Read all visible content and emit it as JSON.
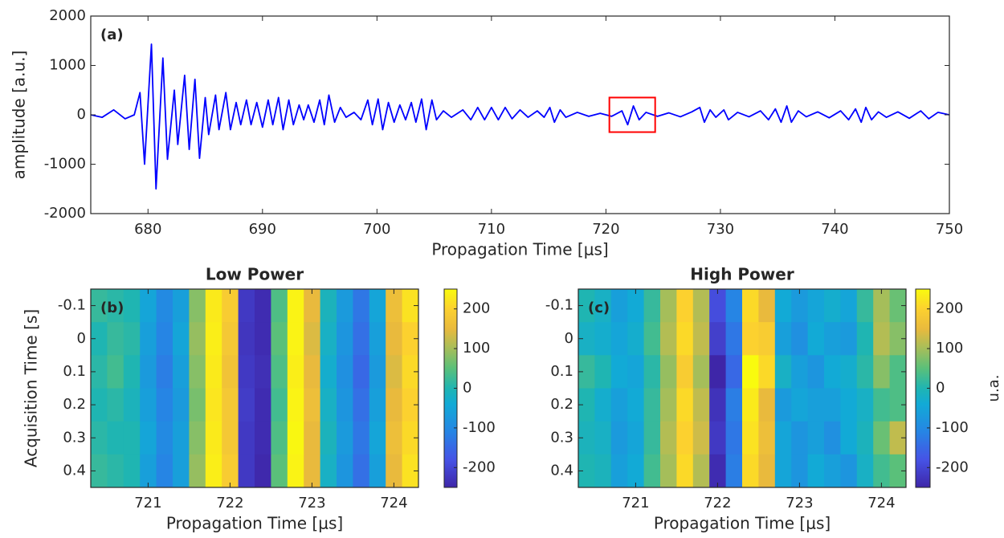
{
  "chart_data": [
    {
      "type": "line",
      "label": "(a)",
      "xlabel": "Propagation Time [μs]",
      "ylabel": "amplitude [a.u.]",
      "xlim": [
        675,
        750
      ],
      "ylim": [
        -2000,
        2000
      ],
      "xticks": [
        680,
        690,
        700,
        710,
        720,
        730,
        740,
        750
      ],
      "yticks": [
        -2000,
        -1000,
        0,
        1000,
        2000
      ],
      "series": [
        {
          "color": "#0000ff",
          "x": [
            675,
            676,
            677,
            678,
            678.8,
            679.3,
            679.7,
            680.3,
            680.7,
            681.3,
            681.7,
            682.3,
            682.6,
            683.2,
            683.6,
            684.1,
            684.5,
            685.0,
            685.3,
            685.9,
            686.2,
            686.8,
            687.2,
            687.7,
            688.1,
            688.6,
            689.0,
            689.5,
            690.0,
            690.5,
            690.9,
            691.4,
            691.8,
            692.3,
            692.7,
            693.2,
            693.6,
            694.0,
            694.5,
            695.0,
            695.4,
            695.8,
            696.3,
            696.8,
            697.3,
            698,
            698.6,
            699.2,
            699.6,
            700.1,
            700.5,
            701.0,
            701.5,
            702,
            702.5,
            703,
            703.4,
            703.9,
            704.3,
            704.8,
            705.2,
            705.8,
            706.5,
            707.5,
            708.2,
            708.8,
            709.4,
            710,
            710.6,
            711.2,
            711.8,
            712.5,
            713.2,
            714,
            714.6,
            715.1,
            715.5,
            716,
            716.5,
            717.5,
            718.5,
            719.5,
            720.5,
            721.4,
            721.9,
            722.4,
            722.9,
            723.5,
            724.5,
            725.5,
            726.5,
            727.5,
            728.2,
            728.6,
            729.1,
            729.6,
            730.3,
            730.7,
            731.5,
            732.5,
            733.5,
            734.2,
            734.8,
            735.3,
            735.8,
            736.2,
            736.8,
            737.5,
            738.5,
            739.5,
            740.5,
            741.2,
            741.8,
            742.3,
            742.7,
            743.2,
            743.8,
            744.5,
            745.5,
            746.5,
            747.5,
            748.2,
            749,
            750
          ],
          "values": [
            0,
            -50,
            100,
            -80,
            0,
            450,
            -1000,
            1430,
            -1500,
            1150,
            -900,
            500,
            -600,
            800,
            -700,
            720,
            -880,
            350,
            -400,
            400,
            -300,
            450,
            -300,
            250,
            -200,
            300,
            -200,
            250,
            -250,
            300,
            -200,
            350,
            -300,
            300,
            -200,
            200,
            -100,
            200,
            -150,
            300,
            -200,
            400,
            -150,
            150,
            -50,
            50,
            -100,
            300,
            -200,
            320,
            -300,
            250,
            -150,
            200,
            -100,
            250,
            -150,
            320,
            -300,
            300,
            -100,
            80,
            -50,
            100,
            -100,
            150,
            -100,
            150,
            -100,
            150,
            -80,
            100,
            -50,
            80,
            -50,
            150,
            -150,
            100,
            -50,
            50,
            -30,
            30,
            -30,
            80,
            -200,
            180,
            -100,
            50,
            -30,
            40,
            -40,
            60,
            150,
            -150,
            100,
            -50,
            100,
            -100,
            50,
            -40,
            80,
            -100,
            120,
            -150,
            180,
            -150,
            80,
            -40,
            60,
            -60,
            80,
            -100,
            120,
            -150,
            150,
            -100,
            60,
            -50,
            60,
            -70,
            80,
            -80,
            50,
            0
          ]
        }
      ],
      "highlight": {
        "xlim": [
          720.3,
          724.3
        ],
        "ylim": [
          -350,
          350
        ],
        "color": "#ff0000"
      }
    },
    {
      "type": "heatmap",
      "title": "Low Power",
      "label": "(b)",
      "xlabel": "Propagation Time [μs]",
      "ylabel": "Acquisition Time [s]",
      "xlim": [
        720.3,
        724.3
      ],
      "ylim": [
        -0.15,
        0.45
      ],
      "y_direction": "reverse",
      "xticks": [
        721,
        722,
        723,
        724
      ],
      "yticks": [
        -0.1,
        0,
        0.1,
        0.2,
        0.3,
        0.4
      ],
      "clim": [
        -250,
        250
      ],
      "cticks": [
        -200,
        -100,
        0,
        100,
        200
      ],
      "colormap": "parula",
      "x": [
        720.4,
        720.6,
        720.8,
        721.0,
        721.2,
        721.4,
        721.6,
        721.8,
        722.0,
        722.2,
        722.4,
        722.6,
        722.8,
        723.0,
        723.2,
        723.4,
        723.6,
        723.8,
        724.0,
        724.2
      ],
      "y": [
        -0.1,
        0,
        0.1,
        0.2,
        0.3,
        0.4
      ],
      "z": [
        [
          20,
          10,
          0,
          -50,
          -100,
          -60,
          80,
          230,
          190,
          -220,
          -240,
          40,
          240,
          150,
          -10,
          -70,
          -130,
          -50,
          160,
          220
        ],
        [
          0,
          20,
          10,
          -60,
          -110,
          -50,
          90,
          235,
          180,
          -225,
          -240,
          50,
          240,
          140,
          -20,
          -80,
          -140,
          -60,
          150,
          200
        ],
        [
          10,
          30,
          0,
          -70,
          -120,
          -60,
          80,
          230,
          170,
          -220,
          -235,
          40,
          235,
          150,
          -30,
          -90,
          -150,
          -70,
          140,
          210
        ],
        [
          0,
          10,
          -10,
          -60,
          -110,
          -70,
          70,
          225,
          180,
          -215,
          -240,
          30,
          240,
          160,
          -20,
          -80,
          -140,
          -60,
          150,
          200
        ],
        [
          10,
          0,
          0,
          -50,
          -100,
          -60,
          80,
          230,
          180,
          -220,
          -240,
          40,
          245,
          150,
          -10,
          -70,
          -130,
          -50,
          160,
          210
        ],
        [
          20,
          10,
          0,
          -60,
          -110,
          -60,
          90,
          235,
          190,
          -220,
          -245,
          50,
          240,
          150,
          -20,
          -80,
          -140,
          -60,
          150,
          220
        ]
      ]
    },
    {
      "type": "heatmap",
      "title": "High Power",
      "label": "(c)",
      "xlabel": "Propagation Time [μs]",
      "clabel": "u.a.",
      "xlim": [
        720.3,
        724.3
      ],
      "ylim": [
        -0.15,
        0.45
      ],
      "y_direction": "reverse",
      "xticks": [
        721,
        722,
        723,
        724
      ],
      "yticks": [
        -0.1,
        0,
        0.1,
        0.2,
        0.3,
        0.4
      ],
      "clim": [
        -250,
        250
      ],
      "cticks": [
        -200,
        -100,
        0,
        100,
        200
      ],
      "colormap": "parula",
      "x": [
        720.4,
        720.6,
        720.8,
        721.0,
        721.2,
        721.4,
        721.6,
        721.8,
        722.0,
        722.2,
        722.4,
        722.6,
        722.8,
        723.0,
        723.2,
        723.4,
        723.6,
        723.8,
        724.0,
        724.2
      ],
      "y": [
        -0.1,
        0,
        0.1,
        0.2,
        0.3,
        0.4
      ],
      "z": [
        [
          0,
          -20,
          -60,
          -40,
          20,
          100,
          200,
          110,
          -190,
          -110,
          210,
          150,
          -40,
          -70,
          -50,
          -30,
          -50,
          20,
          100,
          60
        ],
        [
          -20,
          -30,
          -50,
          -30,
          30,
          110,
          210,
          120,
          -210,
          -130,
          200,
          190,
          -60,
          -90,
          -40,
          -60,
          -70,
          0,
          110,
          80
        ],
        [
          20,
          0,
          -40,
          -50,
          10,
          90,
          190,
          100,
          -250,
          -150,
          250,
          210,
          -20,
          -60,
          -80,
          -40,
          -30,
          10,
          80,
          40
        ],
        [
          0,
          -30,
          -60,
          -40,
          20,
          100,
          210,
          120,
          -230,
          -120,
          230,
          150,
          -70,
          -50,
          -60,
          -60,
          -40,
          -20,
          30,
          40
        ],
        [
          -10,
          -20,
          -70,
          -50,
          20,
          110,
          200,
          130,
          -220,
          -130,
          220,
          160,
          -50,
          -80,
          -60,
          -90,
          -40,
          -10,
          60,
          120
        ],
        [
          0,
          -10,
          -60,
          -40,
          30,
          100,
          210,
          110,
          -240,
          -120,
          210,
          150,
          -50,
          -80,
          -40,
          -60,
          -80,
          -20,
          30,
          50
        ]
      ]
    }
  ]
}
